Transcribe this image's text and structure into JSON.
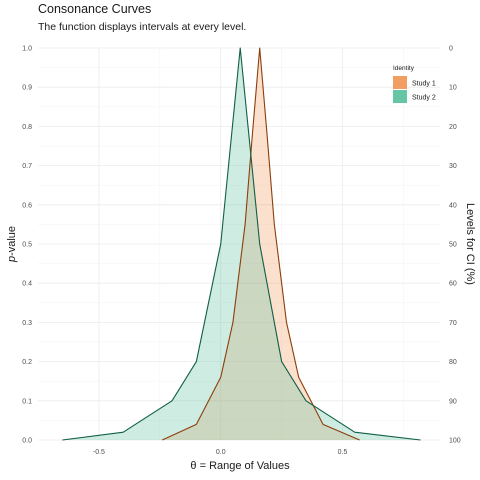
{
  "chart_data": {
    "type": "area",
    "title": "Consonance Curves",
    "subtitle": "The function displays intervals at every level.",
    "xlabel_symbol": "θ = ",
    "xlabel": "Range of Values",
    "ylabel_italic": "p",
    "ylabel": "-value",
    "y2label": "Levels for CI (%)",
    "xlim": [
      -0.75,
      0.9
    ],
    "ylim": [
      0,
      1
    ],
    "x_ticks": [
      "-0.5",
      "0.0",
      "0.5"
    ],
    "x_tick_values": [
      -0.5,
      0.0,
      0.5
    ],
    "y_ticks": [
      "0.0",
      "0.1",
      "0.2",
      "0.3",
      "0.4",
      "0.5",
      "0.6",
      "0.7",
      "0.8",
      "0.9",
      "1.0"
    ],
    "y_tick_values": [
      0.0,
      0.1,
      0.2,
      0.3,
      0.4,
      0.5,
      0.6,
      0.7,
      0.8,
      0.9,
      1.0
    ],
    "y2_ticks": [
      "100",
      "90",
      "80",
      "70",
      "60",
      "50",
      "40",
      "30",
      "20",
      "10",
      "0"
    ],
    "grid": true,
    "legend": {
      "title": "Identity",
      "position": "top-right"
    },
    "series": [
      {
        "name": "Study 1",
        "fill": "#f29e63",
        "line": "#8c3d0a",
        "points": [
          [
            -0.24,
            0.0
          ],
          [
            -0.1,
            0.04
          ],
          [
            0.0,
            0.16
          ],
          [
            0.05,
            0.3
          ],
          [
            0.1,
            0.55
          ],
          [
            0.13,
            0.78
          ],
          [
            0.16,
            1.0
          ],
          [
            0.19,
            0.78
          ],
          [
            0.22,
            0.55
          ],
          [
            0.27,
            0.3
          ],
          [
            0.32,
            0.16
          ],
          [
            0.42,
            0.04
          ],
          [
            0.57,
            0.0
          ]
        ]
      },
      {
        "name": "Study 2",
        "fill": "#66c5a5",
        "line": "#0f5e45",
        "points": [
          [
            -0.65,
            0.0
          ],
          [
            -0.4,
            0.02
          ],
          [
            -0.2,
            0.1
          ],
          [
            -0.1,
            0.2
          ],
          [
            0.0,
            0.5
          ],
          [
            0.04,
            0.75
          ],
          [
            0.08,
            1.0
          ],
          [
            0.12,
            0.75
          ],
          [
            0.16,
            0.5
          ],
          [
            0.25,
            0.2
          ],
          [
            0.35,
            0.1
          ],
          [
            0.55,
            0.02
          ],
          [
            0.82,
            0.0
          ]
        ]
      }
    ]
  }
}
